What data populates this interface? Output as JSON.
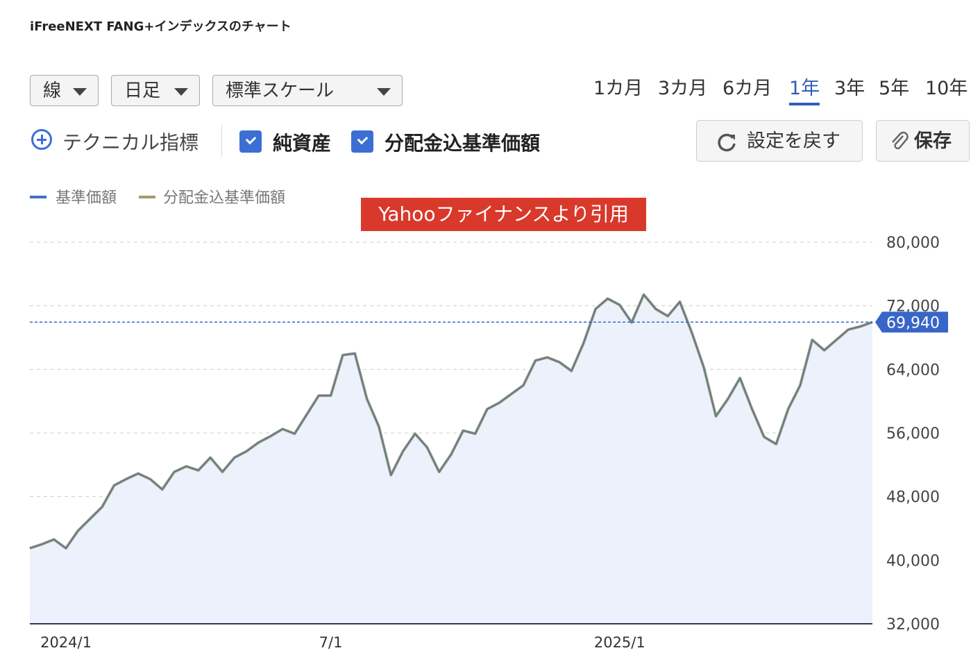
{
  "header": {
    "title": "iFreeNEXT FANG+インデックスのチャート"
  },
  "controls": {
    "dropdowns": [
      "線",
      "日足",
      "標準スケール"
    ],
    "ranges": [
      "1カ月",
      "3カ月",
      "6カ月",
      "1年",
      "3年",
      "5年",
      "10年"
    ],
    "active_range": 3,
    "technical": "テクニカル指標",
    "checkboxes": [
      {
        "label": "純資産",
        "checked": true
      },
      {
        "label": "分配金込基準価額",
        "checked": true
      }
    ],
    "buttons": [
      "設定を戻す",
      "保存"
    ]
  },
  "banner": "Yahooファイナンスより引用",
  "chart_data": {
    "type": "line",
    "categories": [
      null,
      null,
      null,
      "2024/1",
      null,
      null,
      null,
      null,
      null,
      null,
      null,
      null,
      null,
      null,
      null,
      null,
      null,
      null,
      null,
      null,
      null,
      null,
      null,
      null,
      null,
      "7/1",
      null,
      null,
      null,
      null,
      null,
      null,
      null,
      null,
      null,
      null,
      null,
      null,
      null,
      null,
      null,
      null,
      null,
      null,
      null,
      null,
      null,
      null,
      null,
      "2025/1",
      null,
      null,
      null,
      null,
      null,
      null,
      null,
      null,
      null,
      null,
      null,
      null,
      null,
      null,
      null,
      null,
      null,
      null,
      null,
      null,
      null
    ],
    "series": [
      {
        "name": "基準価額",
        "color": "#3f72c6",
        "values": [
          41500,
          42000,
          42600,
          41500,
          43700,
          45200,
          46700,
          49400,
          50200,
          50900,
          50200,
          48900,
          51100,
          51800,
          51300,
          52900,
          51100,
          52900,
          53700,
          54800,
          55600,
          56500,
          55900,
          58300,
          60700,
          60700,
          65800,
          66000,
          60300,
          56800,
          50700,
          53700,
          55900,
          54200,
          51100,
          53300,
          56300,
          55900,
          59000,
          59800,
          60900,
          62000,
          65100,
          65500,
          64900,
          63800,
          67300,
          71600,
          72900,
          72100,
          69900,
          73400,
          71600,
          70700,
          72500,
          68600,
          64200,
          58100,
          60300,
          62900,
          59000,
          55500,
          54600,
          59000,
          62000,
          67700,
          66400,
          67700,
          69000,
          69400,
          69940
        ]
      },
      {
        "name": "分配金込基準価額",
        "color": "#a69a6a",
        "values": [
          41500,
          42000,
          42600,
          41500,
          43700,
          45200,
          46700,
          49400,
          50200,
          50900,
          50200,
          48900,
          51100,
          51800,
          51300,
          52900,
          51100,
          52900,
          53700,
          54800,
          55600,
          56500,
          55900,
          58300,
          60700,
          60700,
          65800,
          66000,
          60300,
          56800,
          50700,
          53700,
          55900,
          54200,
          51100,
          53300,
          56300,
          55900,
          59000,
          59800,
          60900,
          62000,
          65100,
          65500,
          64900,
          63800,
          67300,
          71600,
          72900,
          72100,
          69900,
          73400,
          71600,
          70700,
          72500,
          68600,
          64200,
          58100,
          60300,
          62900,
          59000,
          55500,
          54600,
          59000,
          62000,
          67700,
          66400,
          67700,
          69000,
          69400,
          69940
        ]
      }
    ],
    "current": {
      "value": 69940,
      "label": "69,940"
    },
    "ylim": [
      32000,
      80000
    ],
    "yticks": [
      {
        "value": 32000,
        "label": "32,000"
      },
      {
        "value": 40000,
        "label": "40,000"
      },
      {
        "value": 48000,
        "label": "48,000"
      },
      {
        "value": 56000,
        "label": "56,000"
      },
      {
        "value": 64000,
        "label": "64,000"
      },
      {
        "value": 72000,
        "label": "72,000"
      },
      {
        "value": 80000,
        "label": "80,000"
      }
    ],
    "grid": true
  }
}
